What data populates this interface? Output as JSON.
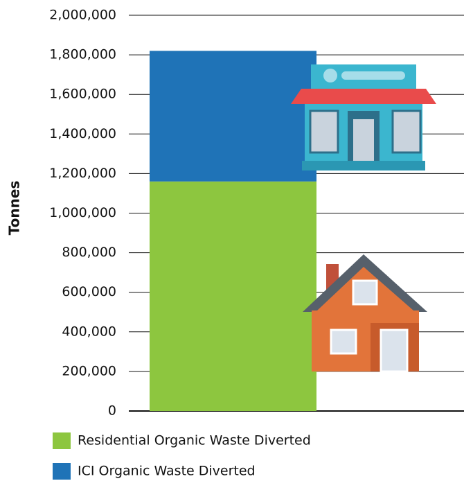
{
  "chart_data": {
    "type": "stacked_bar",
    "y_label": "Tonnes",
    "categories": [
      null
    ],
    "series": [
      {
        "name": "Residential Organic Waste Diverted",
        "color": "#8dc63f",
        "values": [
          1160000
        ]
      },
      {
        "name": "ICI Organic Waste Diverted",
        "color": "#1f73b7",
        "values": [
          660000
        ]
      }
    ],
    "ylim": [
      0,
      2000000
    ],
    "yticks": [
      0,
      {
        "value": 200000,
        "label": "200,000"
      },
      {
        "value": 400000,
        "label": "400,000"
      },
      {
        "value": 600000,
        "label": "600,000"
      },
      {
        "value": 800000,
        "label": "800,000"
      },
      {
        "value": 1000000,
        "label": "1,000,000"
      },
      {
        "value": 1200000,
        "label": "1,200,000"
      },
      {
        "value": 1400000,
        "label": "1,400,000"
      },
      {
        "value": 1600000,
        "label": "1,600,000"
      },
      {
        "value": 1800000,
        "label": "1,800,000"
      },
      {
        "value": 2000000,
        "label": "2,000,000"
      }
    ],
    "grid": true
  }
}
